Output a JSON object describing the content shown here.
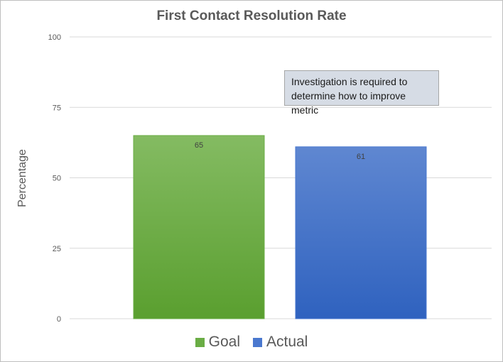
{
  "chart_data": {
    "type": "bar",
    "title": "First Contact Resolution Rate",
    "xlabel": "",
    "ylabel": "Percentage",
    "ylim": [
      0,
      100
    ],
    "yticks": [
      "0",
      "25",
      "50",
      "75",
      "100"
    ],
    "categories": [
      "Goal",
      "Actual"
    ],
    "values": [
      65,
      61
    ],
    "data_labels": [
      "65",
      "61"
    ],
    "colors": [
      "#6aad45",
      "#4a78cf"
    ],
    "grid": true,
    "legend": {
      "position": "bottom",
      "entries": [
        "Goal",
        "Actual"
      ]
    },
    "annotation": "Investigation is required to determine how to improve metric"
  }
}
